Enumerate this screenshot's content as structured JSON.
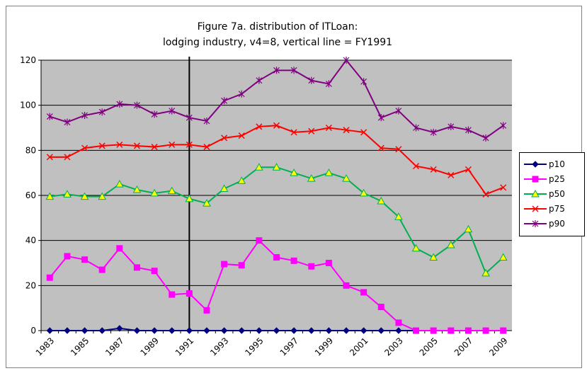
{
  "chart_data": {
    "type": "line",
    "title": [
      "Figure 7a. distribution of ITLoan:",
      "lodging industry, v4=8, vertical line = FY1991"
    ],
    "categories": [
      "1983",
      null,
      "1985",
      null,
      "1987",
      null,
      "1989",
      null,
      "1991",
      null,
      "1993",
      null,
      "1995",
      null,
      "1997",
      null,
      "1999",
      null,
      "2001",
      null,
      "2003",
      null,
      "2005",
      null,
      "2007",
      null,
      "2009"
    ],
    "ylim": [
      0,
      120
    ],
    "yticks": [
      0,
      20,
      40,
      60,
      80,
      100,
      120
    ],
    "grid": true,
    "legend": "right",
    "vline": "1991",
    "series": [
      {
        "name": "p10",
        "color": "#000080",
        "marker": "diamond",
        "marker_fill": "#000080",
        "values": [
          0,
          0,
          0,
          0,
          1,
          0,
          0,
          0,
          0,
          0,
          0,
          0,
          0,
          0,
          0,
          0,
          0,
          0,
          0,
          0,
          0,
          0,
          0,
          0,
          0,
          0,
          0
        ]
      },
      {
        "name": "p25",
        "color": "#ff00ff",
        "marker": "square",
        "marker_fill": "#ff00ff",
        "values": [
          23.5,
          33,
          31.5,
          27,
          36.5,
          28,
          26.5,
          16,
          16.5,
          9,
          29.5,
          29,
          40,
          32.5,
          31,
          28.5,
          30,
          20,
          17,
          10.5,
          3.5,
          0,
          0,
          0,
          0,
          0,
          0
        ]
      },
      {
        "name": "p50",
        "color": "#00b050",
        "marker": "triangle",
        "marker_fill": "#ffff00",
        "values": [
          59.5,
          60.5,
          59.5,
          59.5,
          65,
          62.5,
          61,
          62,
          58.5,
          56.5,
          63,
          66.5,
          72.5,
          72.5,
          70,
          67.5,
          70,
          67.5,
          61,
          57.5,
          50.5,
          36.5,
          32.5,
          38,
          45,
          25.5,
          32.5
        ]
      },
      {
        "name": "p75",
        "color": "#ff0000",
        "marker": "x",
        "marker_fill": "none",
        "values": [
          77,
          77,
          81,
          82,
          82.5,
          82,
          81.5,
          82.5,
          82.5,
          81.5,
          85.5,
          86.5,
          90.5,
          91,
          88,
          88.5,
          90,
          89,
          88,
          81,
          80.5,
          73,
          71.5,
          69,
          71.5,
          60.5,
          63.5
        ]
      },
      {
        "name": "p90",
        "color": "#800080",
        "marker": "star",
        "marker_fill": "none",
        "values": [
          95,
          92.5,
          95.5,
          97,
          100.5,
          100,
          96,
          97.5,
          94.5,
          93,
          102,
          105,
          111,
          115.5,
          115.5,
          111,
          109.5,
          120,
          110.5,
          94.5,
          97.5,
          90,
          88,
          90.5,
          89,
          85.5,
          91
        ]
      }
    ]
  }
}
